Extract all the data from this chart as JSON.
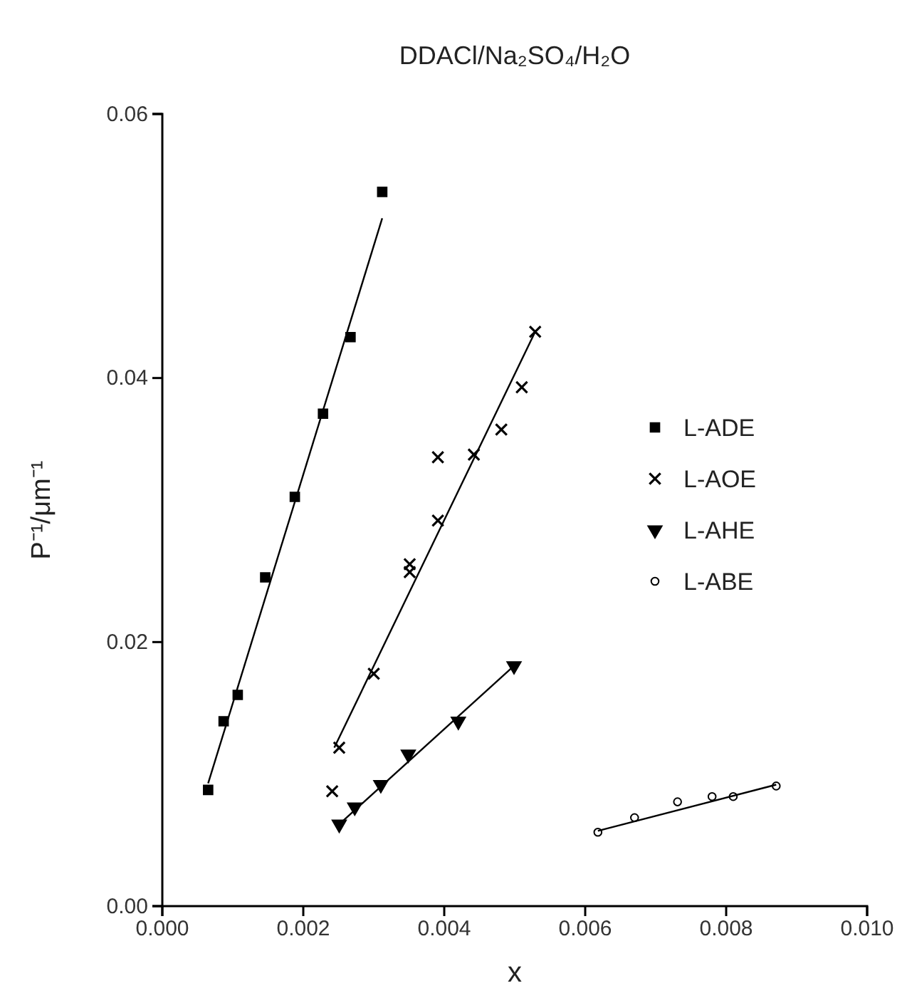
{
  "chart_data": {
    "type": "scatter",
    "title": "DDACl/Na₂SO₄/H₂O",
    "xlabel": "x",
    "ylabel": "P⁻¹/μm⁻¹",
    "xlim": [
      0,
      0.01
    ],
    "ylim": [
      0,
      0.06
    ],
    "xticks": [
      {
        "value": 0,
        "label": "0.000"
      },
      {
        "value": 0.002,
        "label": "0.002"
      },
      {
        "value": 0.004,
        "label": "0.004"
      },
      {
        "value": 0.006,
        "label": "0.006"
      },
      {
        "value": 0.008,
        "label": "0.008"
      },
      {
        "value": 0.01,
        "label": "0.010"
      }
    ],
    "yticks": [
      {
        "value": 0,
        "label": "0.00"
      },
      {
        "value": 0.02,
        "label": "0.02"
      },
      {
        "value": 0.04,
        "label": "0.04"
      },
      {
        "value": 0.06,
        "label": "0.06"
      }
    ],
    "grid": false,
    "legend": "right",
    "series": [
      {
        "name": "L-ADE",
        "color": "#000000",
        "marker": "square",
        "x": [
          0.00065,
          0.00087,
          0.00107,
          0.00146,
          0.00188,
          0.00228,
          0.00267,
          0.00312
        ],
        "values": [
          0.0088,
          0.014,
          0.016,
          0.0249,
          0.031,
          0.0373,
          0.0431,
          0.0541
        ]
      },
      {
        "name": "L-AOE",
        "color": "#000000",
        "marker": "cross",
        "x": [
          0.00241,
          0.00251,
          0.003,
          0.00351,
          0.00351,
          0.00391,
          0.00391,
          0.00442,
          0.00481,
          0.0051,
          0.00529
        ],
        "values": [
          0.0087,
          0.012,
          0.0176,
          0.0259,
          0.0253,
          0.034,
          0.0292,
          0.0342,
          0.0361,
          0.0393,
          0.0435
        ]
      },
      {
        "name": "L-AHE",
        "color": "#000000",
        "marker": "triangle",
        "x": [
          0.00251,
          0.00273,
          0.0031,
          0.00349,
          0.0042,
          0.00499
        ],
        "values": [
          0.0062,
          0.0075,
          0.0092,
          0.0115,
          0.014,
          0.0182
        ]
      },
      {
        "name": "L-ABE",
        "color": "#000000",
        "marker": "circle",
        "x": [
          0.00618,
          0.0067,
          0.00731,
          0.0078,
          0.0081,
          0.00871
        ],
        "values": [
          0.0056,
          0.0067,
          0.0079,
          0.0083,
          0.0083,
          0.0091
        ]
      },
      {
        "type": "line",
        "color": "#000000",
        "marker": "none",
        "x": [
          0.00065,
          0.00312
        ],
        "values": [
          0.0093,
          0.0521
        ]
      },
      {
        "type": "line",
        "color": "#000000",
        "marker": "none",
        "x": [
          0.00244,
          0.00529
        ],
        "values": [
          0.012,
          0.0435
        ]
      },
      {
        "type": "line",
        "color": "#000000",
        "marker": "none",
        "x": [
          0.00251,
          0.00499
        ],
        "values": [
          0.0062,
          0.0182
        ]
      },
      {
        "type": "line",
        "color": "#000000",
        "marker": "none",
        "x": [
          0.00618,
          0.00871
        ],
        "values": [
          0.0057,
          0.0092
        ]
      }
    ]
  }
}
